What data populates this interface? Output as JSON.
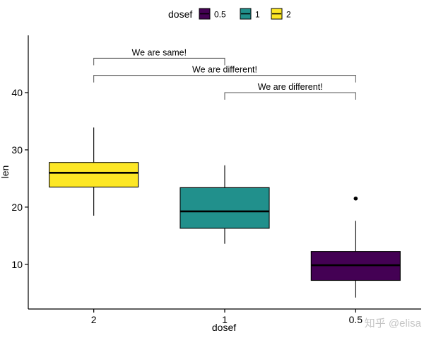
{
  "chart_data": {
    "type": "boxplot",
    "xlabel": "dosef",
    "ylabel": "len",
    "categories": [
      "2",
      "1",
      "0.5"
    ],
    "legend": {
      "title": "dosef",
      "position": "top",
      "entries": [
        {
          "label": "0.5",
          "color": "#440154"
        },
        {
          "label": "1",
          "color": "#21908C"
        },
        {
          "label": "2",
          "color": "#FDE725"
        }
      ]
    },
    "ylim": [
      2.2,
      50
    ],
    "yticks": [
      10,
      20,
      30,
      40
    ],
    "grid": false,
    "boxes": [
      {
        "category": "2",
        "color": "#FDE725",
        "whisker_low": 18.5,
        "q1": 23.5,
        "median": 26.0,
        "q3": 27.8,
        "whisker_high": 33.9,
        "outliers": []
      },
      {
        "category": "1",
        "color": "#21908C",
        "whisker_low": 13.6,
        "q1": 16.3,
        "median": 19.25,
        "q3": 23.4,
        "whisker_high": 27.3,
        "outliers": []
      },
      {
        "category": "0.5",
        "color": "#440154",
        "whisker_low": 4.2,
        "q1": 7.2,
        "median": 9.85,
        "q3": 12.25,
        "whisker_high": 17.6,
        "outliers": [
          21.5
        ]
      }
    ],
    "comparisons": [
      {
        "from": "2",
        "to": "1",
        "y": 46.0,
        "label": "We are same!"
      },
      {
        "from": "2",
        "to": "0.5",
        "y": 43.0,
        "label": "We are different!"
      },
      {
        "from": "1",
        "to": "0.5",
        "y": 40.0,
        "label": "We are different!"
      }
    ]
  },
  "watermark": "知乎 @elisa"
}
